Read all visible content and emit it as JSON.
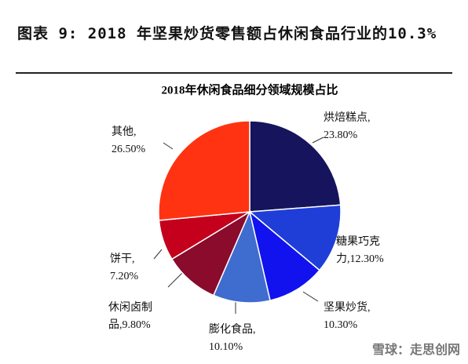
{
  "header": {
    "title": "图表 9: 2018 年坚果炒货零售额占休闲食品行业的10.3%"
  },
  "chart_data": {
    "type": "pie",
    "title": "2018年休闲食品细分领域规模占比",
    "categories": [
      "烘焙糕点,",
      "糖果巧克力,",
      "坚果炒货,",
      "膨化食品,",
      "休闲卤制品,",
      "饼干,",
      "其他,"
    ],
    "values": [
      23.8,
      12.3,
      10.3,
      10.1,
      9.8,
      7.2,
      26.5
    ],
    "value_labels": [
      "23.80%",
      "12.30%",
      "10.30%",
      "10.10%",
      "9.80%",
      "7.20%",
      "26.50%"
    ],
    "colors": [
      "#15145c",
      "#1f3ed8",
      "#1212ee",
      "#3f6ccf",
      "#8a0b2c",
      "#c4001c",
      "#ff3311"
    ]
  },
  "watermark": "雪球：走思创网"
}
